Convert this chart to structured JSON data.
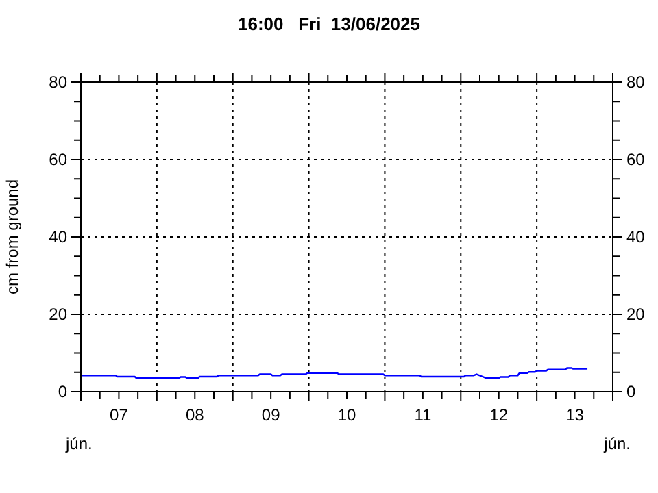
{
  "chart_data": {
    "type": "line",
    "title": "16:00   Fri  13/06/2025",
    "ylabel": "cm from ground",
    "annotations": [
      "jún.",
      "jún."
    ],
    "grid": true,
    "line_style": "solid",
    "xlim": [
      "2025-06-07T00:00",
      "2025-06-14T00:00"
    ],
    "xticks": [
      {
        "value": "2025-06-07T00:00",
        "label": null
      },
      {
        "value": "2025-06-07T06:00",
        "label": null
      },
      {
        "value": "2025-06-07T12:00",
        "label": "07"
      },
      {
        "value": "2025-06-07T18:00",
        "label": null
      },
      {
        "value": "2025-06-08T00:00",
        "label": null
      },
      {
        "value": "2025-06-08T06:00",
        "label": null
      },
      {
        "value": "2025-06-08T12:00",
        "label": "08"
      },
      {
        "value": "2025-06-08T18:00",
        "label": null
      },
      {
        "value": "2025-06-09T00:00",
        "label": null
      },
      {
        "value": "2025-06-09T06:00",
        "label": null
      },
      {
        "value": "2025-06-09T12:00",
        "label": "09"
      },
      {
        "value": "2025-06-09T18:00",
        "label": null
      },
      {
        "value": "2025-06-10T00:00",
        "label": null
      },
      {
        "value": "2025-06-10T06:00",
        "label": null
      },
      {
        "value": "2025-06-10T12:00",
        "label": "10"
      },
      {
        "value": "2025-06-10T18:00",
        "label": null
      },
      {
        "value": "2025-06-11T00:00",
        "label": null
      },
      {
        "value": "2025-06-11T06:00",
        "label": null
      },
      {
        "value": "2025-06-11T12:00",
        "label": "11"
      },
      {
        "value": "2025-06-11T18:00",
        "label": null
      },
      {
        "value": "2025-06-12T00:00",
        "label": null
      },
      {
        "value": "2025-06-12T06:00",
        "label": null
      },
      {
        "value": "2025-06-12T12:00",
        "label": "12"
      },
      {
        "value": "2025-06-12T18:00",
        "label": null
      },
      {
        "value": "2025-06-13T00:00",
        "label": null
      },
      {
        "value": "2025-06-13T06:00",
        "label": null
      },
      {
        "value": "2025-06-13T12:00",
        "label": "13"
      },
      {
        "value": "2025-06-13T18:00",
        "label": null
      },
      {
        "value": "2025-06-14T00:00",
        "label": null
      }
    ],
    "ylim": [
      0,
      80
    ],
    "yticks": [
      0,
      {
        "value": 5,
        "label": null
      },
      {
        "value": 10,
        "label": null
      },
      {
        "value": 15,
        "label": null
      },
      20,
      {
        "value": 25,
        "label": null
      },
      {
        "value": 30,
        "label": null
      },
      {
        "value": 35,
        "label": null
      },
      40,
      {
        "value": 45,
        "label": null
      },
      {
        "value": 50,
        "label": null
      },
      {
        "value": 55,
        "label": null
      },
      60,
      {
        "value": 65,
        "label": null
      },
      {
        "value": 70,
        "label": null
      },
      {
        "value": 75,
        "label": null
      },
      80
    ],
    "y2lim": [
      0,
      80
    ],
    "y2ticks": [
      0,
      {
        "value": 5,
        "label": null
      },
      {
        "value": 10,
        "label": null
      },
      {
        "value": 15,
        "label": null
      },
      20,
      {
        "value": 25,
        "label": null
      },
      {
        "value": 30,
        "label": null
      },
      {
        "value": 35,
        "label": null
      },
      40,
      {
        "value": 45,
        "label": null
      },
      {
        "value": 50,
        "label": null
      },
      {
        "value": 55,
        "label": null
      },
      60,
      {
        "value": 65,
        "label": null
      },
      {
        "value": 70,
        "label": null
      },
      {
        "value": 75,
        "label": null
      },
      80
    ],
    "series": [
      {
        "color": "#0000ff",
        "x": [
          "2025-06-07T00:00",
          "2025-06-07T11:00",
          "2025-06-07T11:30",
          "2025-06-07T17:00",
          "2025-06-07T17:30",
          "2025-06-08T07:00",
          "2025-06-08T07:30",
          "2025-06-08T09:00",
          "2025-06-08T09:30",
          "2025-06-08T13:00",
          "2025-06-08T13:30",
          "2025-06-08T19:00",
          "2025-06-08T19:30",
          "2025-06-09T08:00",
          "2025-06-09T08:30",
          "2025-06-09T12:00",
          "2025-06-09T12:30",
          "2025-06-09T15:00",
          "2025-06-09T15:30",
          "2025-06-09T23:00",
          "2025-06-09T23:30",
          "2025-06-10T09:00",
          "2025-06-10T09:30",
          "2025-06-10T23:30",
          "2025-06-11T00:00",
          "2025-06-11T11:00",
          "2025-06-11T11:30",
          "2025-06-12T01:00",
          "2025-06-12T01:30",
          "2025-06-12T04:00",
          "2025-06-12T05:00",
          "2025-06-12T06:00",
          "2025-06-12T08:00",
          "2025-06-12T12:00",
          "2025-06-12T12:30",
          "2025-06-12T15:00",
          "2025-06-12T15:30",
          "2025-06-12T18:00",
          "2025-06-12T18:30",
          "2025-06-12T21:00",
          "2025-06-12T21:30",
          "2025-06-12T23:30",
          "2025-06-13T00:00",
          "2025-06-13T03:00",
          "2025-06-13T03:30",
          "2025-06-13T09:00",
          "2025-06-13T09:30",
          "2025-06-13T11:00",
          "2025-06-13T11:30",
          "2025-06-13T16:00"
        ],
        "values": [
          4.2,
          4.2,
          3.9,
          3.9,
          3.5,
          3.5,
          3.8,
          3.8,
          3.5,
          3.5,
          3.9,
          3.9,
          4.2,
          4.2,
          4.5,
          4.5,
          4.2,
          4.2,
          4.5,
          4.5,
          4.8,
          4.8,
          4.5,
          4.5,
          4.2,
          4.2,
          3.9,
          3.9,
          4.2,
          4.2,
          4.5,
          4.2,
          3.5,
          3.5,
          3.8,
          3.8,
          4.2,
          4.2,
          4.8,
          4.8,
          5.1,
          5.1,
          5.4,
          5.4,
          5.7,
          5.7,
          6.1,
          6.1,
          5.9,
          5.9
        ]
      }
    ]
  }
}
